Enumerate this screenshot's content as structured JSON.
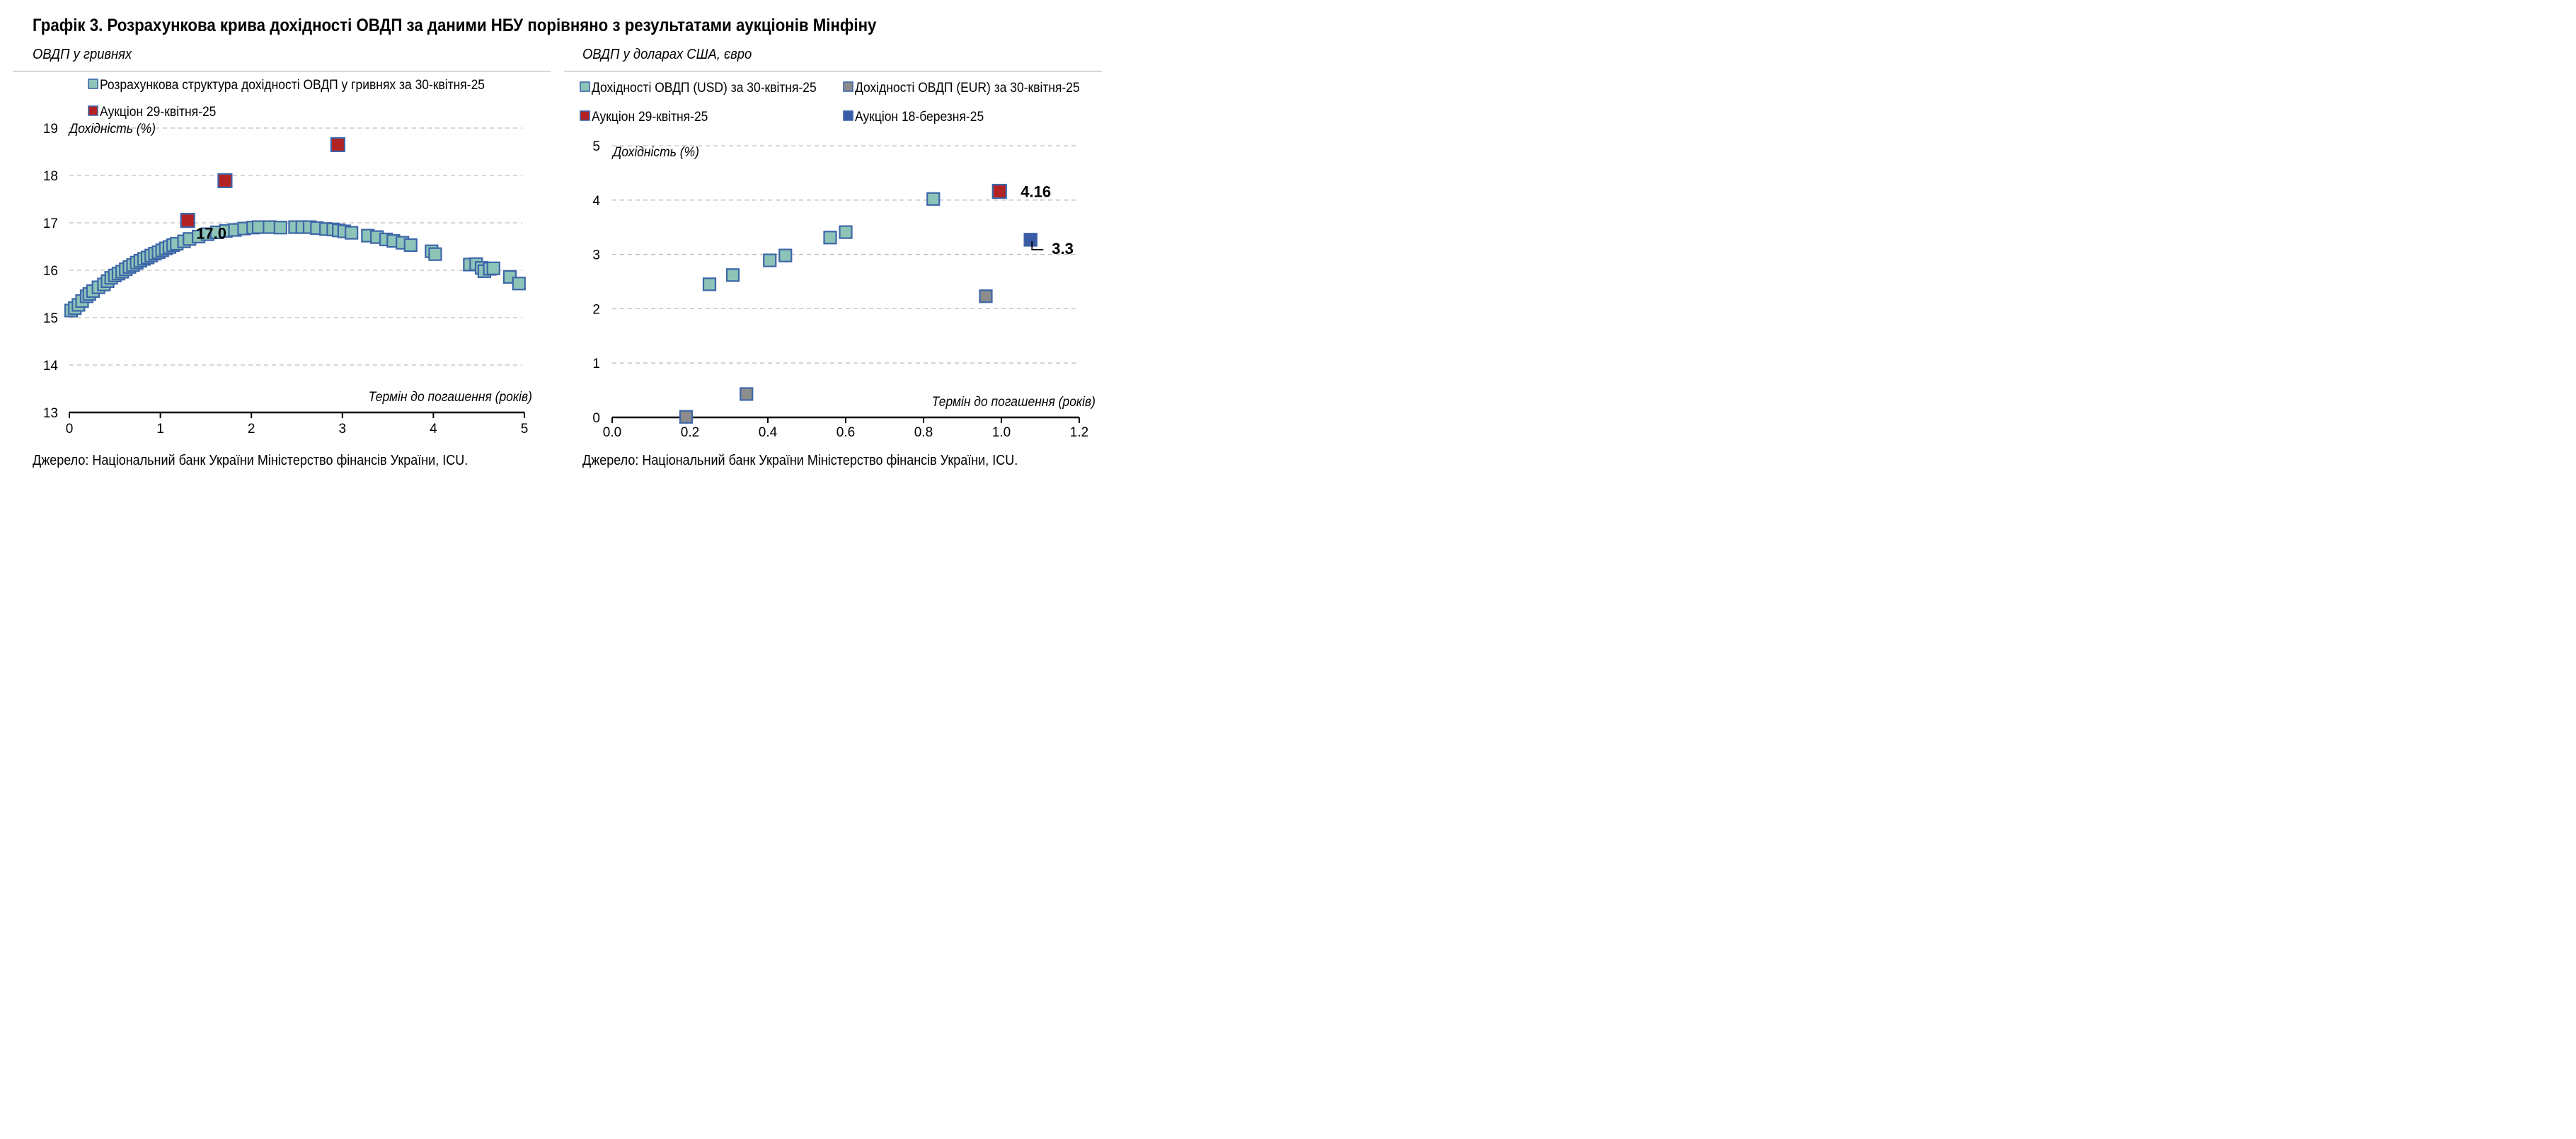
{
  "title": "Графік 3. Розрахункова крива дохідності ОВДП за даними НБУ порівняно з результатами аукціонів Мінфіну",
  "left_panel": {
    "subtitle": "ОВДП у гривнях",
    "source": "Джерело: Національний банк України Міністерство фінансів України, ICU."
  },
  "right_panel": {
    "subtitle": "ОВДП у доларах США, євро",
    "source": "Джерело: Національний банк України Міністерство фінансів України, ICU."
  },
  "colors": {
    "curve_fill": "#8dc4b8",
    "curve_stroke": "#3d66a8",
    "usd_fill": "#8dc4b8",
    "eur_fill": "#8c8c8c",
    "auction_red": "#b22222",
    "auction_blue": "#3a5ba5",
    "grid": "#bfbfbf",
    "axis": "#000000"
  },
  "chart_data": [
    {
      "type": "scatter",
      "ylabel": "Дохідність (%)",
      "xlabel": "Термін до погашення (років)",
      "xlim": [
        0,
        5
      ],
      "ylim": [
        13,
        19
      ],
      "x_ticks": [
        "0",
        "1",
        "2",
        "3",
        "4",
        "5"
      ],
      "y_ticks": [
        "13",
        "14",
        "15",
        "16",
        "17",
        "18",
        "19"
      ],
      "grid": "horizontal dashed",
      "legend": "top",
      "series": [
        {
          "name": "Розрахункова структура дохідності ОВДП у гривнях за 30-квітня-25",
          "marker": "curve",
          "points": [
            [
              0.02,
              15.15
            ],
            [
              0.06,
              15.2
            ],
            [
              0.1,
              15.27
            ],
            [
              0.14,
              15.35
            ],
            [
              0.19,
              15.45
            ],
            [
              0.22,
              15.5
            ],
            [
              0.26,
              15.56
            ],
            [
              0.32,
              15.64
            ],
            [
              0.38,
              15.7
            ],
            [
              0.42,
              15.77
            ],
            [
              0.46,
              15.84
            ],
            [
              0.5,
              15.89
            ],
            [
              0.54,
              15.93
            ],
            [
              0.58,
              15.97
            ],
            [
              0.62,
              16.02
            ],
            [
              0.66,
              16.07
            ],
            [
              0.7,
              16.11
            ],
            [
              0.74,
              16.16
            ],
            [
              0.78,
              16.2
            ],
            [
              0.82,
              16.24
            ],
            [
              0.86,
              16.27
            ],
            [
              0.9,
              16.31
            ],
            [
              0.94,
              16.35
            ],
            [
              0.98,
              16.38
            ],
            [
              1.02,
              16.42
            ],
            [
              1.06,
              16.46
            ],
            [
              1.1,
              16.49
            ],
            [
              1.14,
              16.53
            ],
            [
              1.18,
              16.56
            ],
            [
              1.26,
              16.61
            ],
            [
              1.32,
              16.66
            ],
            [
              1.42,
              16.71
            ],
            [
              1.52,
              16.76
            ],
            [
              1.62,
              16.8
            ],
            [
              1.72,
              16.83
            ],
            [
              1.82,
              16.85
            ],
            [
              1.92,
              16.88
            ],
            [
              2.02,
              16.9
            ],
            [
              2.08,
              16.91
            ],
            [
              2.2,
              16.91
            ],
            [
              2.32,
              16.9
            ],
            [
              2.48,
              16.91
            ],
            [
              2.56,
              16.91
            ],
            [
              2.64,
              16.91
            ],
            [
              2.72,
              16.89
            ],
            [
              2.82,
              16.87
            ],
            [
              2.9,
              16.86
            ],
            [
              2.96,
              16.84
            ],
            [
              3.02,
              16.82
            ],
            [
              3.1,
              16.79
            ],
            [
              3.28,
              16.73
            ],
            [
              3.38,
              16.7
            ],
            [
              3.48,
              16.65
            ],
            [
              3.56,
              16.62
            ],
            [
              3.66,
              16.58
            ],
            [
              3.75,
              16.53
            ],
            [
              3.98,
              16.4
            ],
            [
              4.02,
              16.34
            ],
            [
              4.4,
              16.12
            ],
            [
              4.47,
              16.13
            ],
            [
              4.53,
              16.05
            ],
            [
              4.56,
              15.98
            ],
            [
              4.62,
              16.03
            ],
            [
              4.66,
              16.04
            ],
            [
              4.84,
              15.86
            ],
            [
              4.94,
              15.72
            ]
          ]
        },
        {
          "name": "Аукціон 29-квітня-25",
          "marker": "auction_red",
          "points": [
            [
              1.3,
              17.05
            ],
            [
              1.71,
              17.89
            ],
            [
              2.95,
              18.65
            ]
          ]
        }
      ],
      "annotations": [
        {
          "text": "17.0",
          "x": 1.3,
          "y": 17.05
        }
      ]
    },
    {
      "type": "scatter",
      "ylabel": "Дохідність (%)",
      "xlabel": "Термін до погашення (років)",
      "xlim": [
        0,
        1.2
      ],
      "ylim": [
        0,
        5
      ],
      "x_ticks": [
        "0.0",
        "0.2",
        "0.4",
        "0.6",
        "0.8",
        "1.0",
        "1.2"
      ],
      "y_ticks": [
        "0",
        "1",
        "2",
        "3",
        "4",
        "5"
      ],
      "grid": "horizontal dashed",
      "legend": "top",
      "series": [
        {
          "name": "Дохідності ОВДП (USD) за 30-квітня-25",
          "marker": "usd",
          "points": [
            [
              0.25,
              2.45
            ],
            [
              0.31,
              2.62
            ],
            [
              0.405,
              2.89
            ],
            [
              0.445,
              2.98
            ],
            [
              0.56,
              3.31
            ],
            [
              0.6,
              3.41
            ],
            [
              0.825,
              4.02
            ]
          ]
        },
        {
          "name": "Дохідності ОВДП (EUR) за 30-квітня-25",
          "marker": "eur",
          "points": [
            [
              0.19,
              0.01
            ],
            [
              0.345,
              0.43
            ],
            [
              0.96,
              2.23
            ]
          ]
        },
        {
          "name": "Аукціон 29-квітня-25",
          "marker": "auction_red",
          "points": [
            [
              0.995,
              4.16
            ]
          ]
        },
        {
          "name": "Аукціон 18-березня-25",
          "marker": "auction_blue",
          "points": [
            [
              1.075,
              3.27
            ]
          ]
        }
      ],
      "annotations": [
        {
          "text": "4.16",
          "x": 0.995,
          "y": 4.16
        },
        {
          "text": "3.3",
          "x": 1.075,
          "y": 3.27
        }
      ]
    }
  ]
}
